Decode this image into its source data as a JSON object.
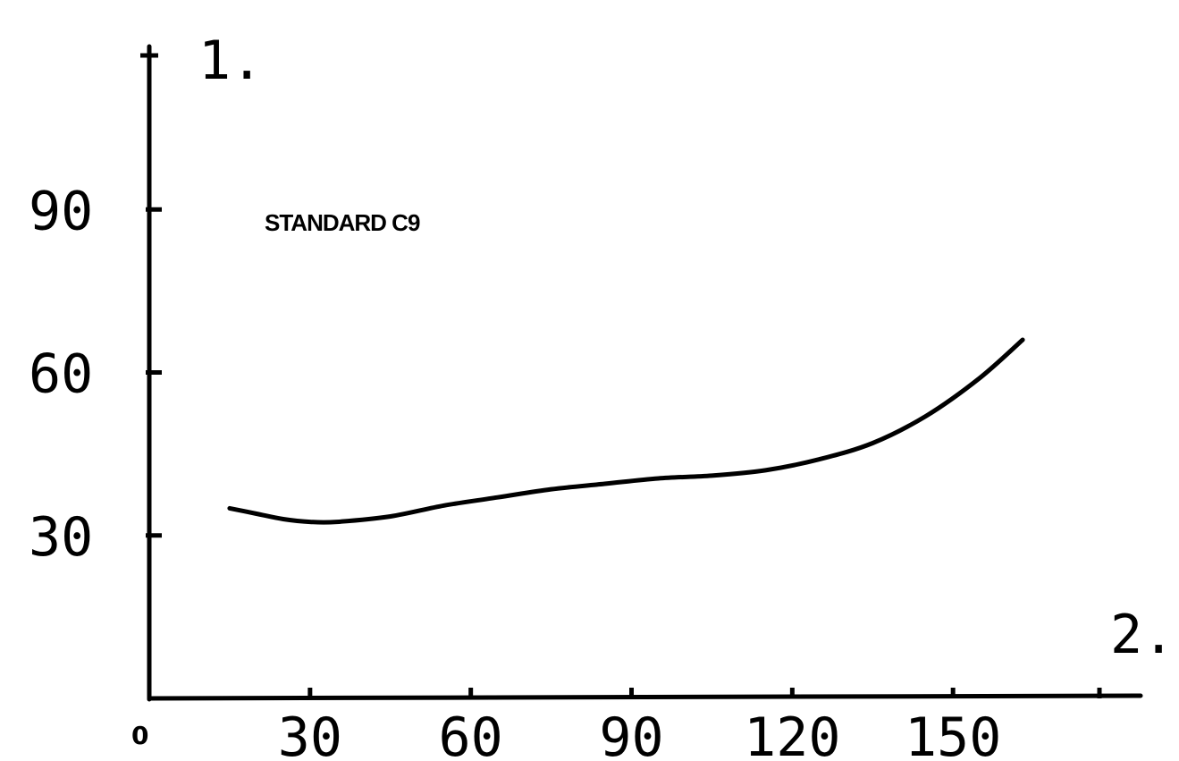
{
  "chart_data": {
    "type": "line",
    "y_axis_marker": "1.",
    "x_axis_marker": "2.",
    "origin_label": "0",
    "x_ticks": [
      "30",
      "60",
      "90",
      "120",
      "150"
    ],
    "y_ticks": [
      "30",
      "60",
      "90"
    ],
    "xlim": [
      0,
      185
    ],
    "ylim": [
      0,
      120
    ],
    "series": [
      {
        "name": "STANDARD C9",
        "x": [
          15,
          20,
          25,
          30,
          35,
          45,
          55,
          65,
          75,
          85,
          95,
          105,
          115,
          125,
          135,
          145,
          155,
          163
        ],
        "y": [
          35,
          34,
          33,
          32.5,
          32.5,
          33.5,
          35.5,
          37,
          38.5,
          39.5,
          40.5,
          41,
          42,
          44,
          47,
          52,
          59,
          66
        ]
      }
    ]
  }
}
